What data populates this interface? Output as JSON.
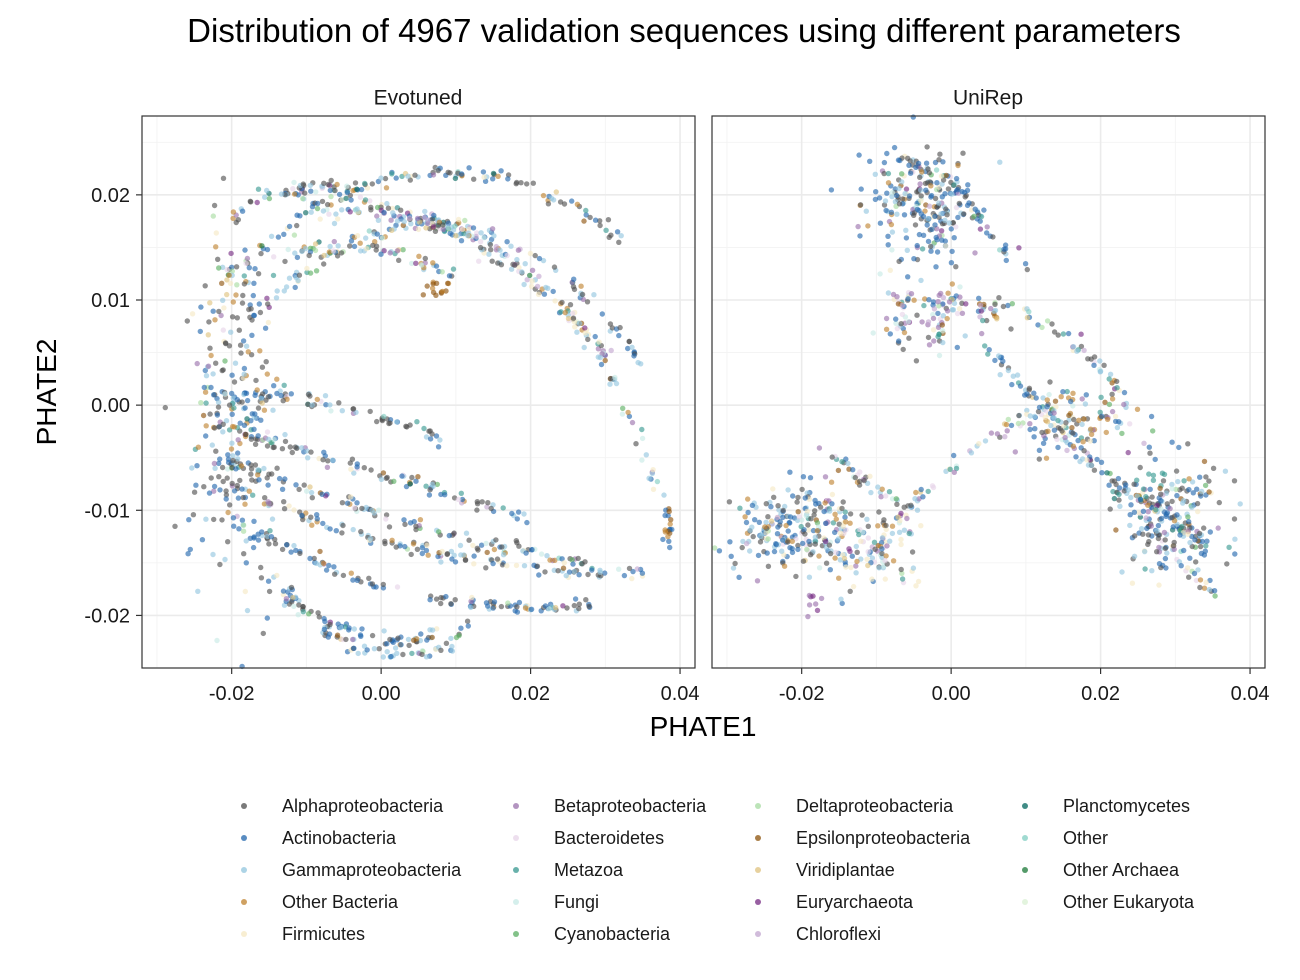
{
  "chart_data": {
    "type": "scatter",
    "title": "Distribution of 4967 validation sequences using different parameters",
    "xlabel": "PHATE1",
    "ylabel": "PHATE2",
    "facets": [
      "Evotuned",
      "UniRep"
    ],
    "xlim": [
      -0.032,
      0.042
    ],
    "ylim": [
      -0.025,
      0.0275
    ],
    "x_ticks": [
      -0.02,
      0.0,
      0.02,
      0.04
    ],
    "x_tick_labels": [
      "-0.02",
      "0.00",
      "0.02",
      "0.04"
    ],
    "y_ticks": [
      -0.02,
      -0.01,
      0.0,
      0.01,
      0.02
    ],
    "y_tick_labels": [
      "-0.02",
      "-0.01",
      "0.00",
      "0.01",
      "0.02"
    ],
    "grid": true,
    "legend_position": "bottom",
    "series": [
      {
        "name": "Alphaproteobacteria",
        "color": "#4d4d4d"
      },
      {
        "name": "Actinobacteria",
        "color": "#2166ac"
      },
      {
        "name": "Gammaproteobacteria",
        "color": "#92c5de"
      },
      {
        "name": "Other Bacteria",
        "color": "#bf812d"
      },
      {
        "name": "Firmicutes",
        "color": "#f6e8c3"
      },
      {
        "name": "Betaproteobacteria",
        "color": "#9970ab"
      },
      {
        "name": "Bacteroidetes",
        "color": "#e7d4e8"
      },
      {
        "name": "Metazoa",
        "color": "#35978f"
      },
      {
        "name": "Fungi",
        "color": "#c7eae5"
      },
      {
        "name": "Cyanobacteria",
        "color": "#5aae61"
      },
      {
        "name": "Deltaproteobacteria",
        "color": "#a6dba0"
      },
      {
        "name": "Epsilonproteobacteria",
        "color": "#8c510a"
      },
      {
        "name": "Viridiplantae",
        "color": "#dfc27d"
      },
      {
        "name": "Euryarchaeota",
        "color": "#762a83"
      },
      {
        "name": "Chloroflexi",
        "color": "#c2a5cf"
      },
      {
        "name": "Planctomycetes",
        "color": "#01665e"
      },
      {
        "name": "Other",
        "color": "#80cdc1"
      },
      {
        "name": "Other Archaea",
        "color": "#1b7837"
      },
      {
        "name": "Other Eukaryota",
        "color": "#d9f0d3"
      }
    ],
    "structure": {
      "Evotuned": {
        "arcs": [
          {
            "x0": -0.021,
            "y0": 0.012,
            "x1": 0.032,
            "y1": 0.016,
            "bulge": 0.008,
            "weights": [
              0.3,
              0.25,
              0.15,
              0.07,
              0.06,
              0.04,
              0.02,
              0.04,
              0.02,
              0.01,
              0.02,
              0.02,
              0.02,
              0.01,
              0.01,
              0.02,
              0.02,
              0.01,
              0.01
            ]
          },
          {
            "x0": -0.018,
            "y0": 0.008,
            "x1": 0.035,
            "y1": 0.004,
            "bulge": 0.011,
            "weights": [
              0.2,
              0.2,
              0.25,
              0.06,
              0.05,
              0.06,
              0.02,
              0.05,
              0.02,
              0.01,
              0.01,
              0.01,
              0.02,
              0.02,
              0.01,
              0.01,
              0.02,
              0.01,
              0.01
            ]
          },
          {
            "x0": -0.012,
            "y0": 0.02,
            "x1": 0.03,
            "y1": 0.005,
            "bulge": 0.004,
            "weights": [
              0.2,
              0.2,
              0.15,
              0.05,
              0.08,
              0.08,
              0.03,
              0.05,
              0.04,
              0.01,
              0.01,
              0.01,
              0.02,
              0.03,
              0.03,
              0.01,
              0.02,
              0.01,
              0.01
            ]
          },
          {
            "x0": -0.009,
            "y0": 0.018,
            "x1": 0.038,
            "y1": -0.01,
            "bulge": 0.01,
            "weights": [
              0.15,
              0.15,
              0.3,
              0.05,
              0.06,
              0.08,
              0.04,
              0.03,
              0.04,
              0.01,
              0.01,
              0.01,
              0.02,
              0.02,
              0.03,
              0.01,
              0.01,
              0.01,
              0.01
            ]
          },
          {
            "x0": -0.022,
            "y0": 0.001,
            "x1": 0.008,
            "y1": -0.003,
            "bulge": 0.001,
            "weights": [
              0.3,
              0.3,
              0.15,
              0.06,
              0.03,
              0.03,
              0.02,
              0.03,
              0.01,
              0.01,
              0.01,
              0.01,
              0.01,
              0.01,
              0.01,
              0.01,
              0.01,
              0.0,
              0.0
            ]
          },
          {
            "x0": -0.022,
            "y0": -0.002,
            "x1": 0.02,
            "y1": -0.011,
            "bulge": 0.0,
            "weights": [
              0.35,
              0.2,
              0.15,
              0.07,
              0.04,
              0.04,
              0.02,
              0.04,
              0.01,
              0.01,
              0.01,
              0.01,
              0.01,
              0.01,
              0.01,
              0.01,
              0.01,
              0.0,
              0.0
            ]
          },
          {
            "x0": -0.021,
            "y0": -0.005,
            "x1": 0.027,
            "y1": -0.015,
            "bulge": -0.001,
            "weights": [
              0.35,
              0.2,
              0.15,
              0.06,
              0.06,
              0.04,
              0.02,
              0.02,
              0.02,
              0.01,
              0.01,
              0.01,
              0.01,
              0.01,
              0.01,
              0.01,
              0.01,
              0.0,
              0.0
            ]
          },
          {
            "x0": -0.02,
            "y0": -0.008,
            "x1": 0.035,
            "y1": -0.016,
            "bulge": -0.002,
            "weights": [
              0.3,
              0.25,
              0.15,
              0.05,
              0.08,
              0.04,
              0.02,
              0.02,
              0.02,
              0.01,
              0.01,
              0.01,
              0.01,
              0.01,
              0.01,
              0.01,
              0.01,
              0.0,
              0.0
            ]
          },
          {
            "x0": -0.019,
            "y0": -0.011,
            "x1": 0.028,
            "y1": -0.019,
            "bulge": -0.003,
            "weights": [
              0.3,
              0.35,
              0.15,
              0.04,
              0.03,
              0.03,
              0.02,
              0.02,
              0.01,
              0.01,
              0.01,
              0.01,
              0.01,
              0.01,
              0.01,
              0.0,
              0.0,
              0.0,
              0.0
            ]
          },
          {
            "x0": -0.018,
            "y0": -0.014,
            "x1": 0.012,
            "y1": -0.021,
            "bulge": -0.004,
            "weights": [
              0.3,
              0.3,
              0.2,
              0.04,
              0.04,
              0.03,
              0.02,
              0.01,
              0.01,
              0.01,
              0.01,
              0.01,
              0.01,
              0.01,
              0.01,
              0.0,
              0.0,
              0.0,
              0.0
            ]
          },
          {
            "x0": -0.015,
            "y0": -0.017,
            "x1": 0.01,
            "y1": -0.023,
            "bulge": -0.003,
            "weights": [
              0.2,
              0.2,
              0.35,
              0.03,
              0.03,
              0.03,
              0.03,
              0.02,
              0.02,
              0.01,
              0.01,
              0.01,
              0.02,
              0.01,
              0.02,
              0.0,
              0.01,
              0.0,
              0.0
            ]
          },
          {
            "x0": -0.014,
            "y0": 0.014,
            "x1": 0.01,
            "y1": 0.012,
            "bulge": 0.002,
            "weights": [
              0.2,
              0.15,
              0.15,
              0.15,
              0.05,
              0.05,
              0.02,
              0.08,
              0.03,
              0.02,
              0.02,
              0.03,
              0.02,
              0.01,
              0.01,
              0.01,
              0.02,
              0.0,
              0.0
            ]
          },
          {
            "x0": -0.02,
            "y0": 0.018,
            "x1": -0.005,
            "y1": 0.021,
            "bulge": 0.001,
            "weights": [
              0.25,
              0.15,
              0.15,
              0.1,
              0.05,
              0.05,
              0.03,
              0.06,
              0.03,
              0.02,
              0.02,
              0.03,
              0.02,
              0.02,
              0.01,
              0.01,
              0.02,
              0.0,
              0.0
            ]
          }
        ],
        "blobs": [
          {
            "cx": -0.02,
            "cy": 0.0,
            "sx": 0.003,
            "sy": 0.009,
            "n": 260,
            "weights": [
              0.3,
              0.25,
              0.15,
              0.1,
              0.03,
              0.03,
              0.03,
              0.03,
              0.01,
              0.01,
              0.01,
              0.01,
              0.01,
              0.01,
              0.01,
              0.01,
              0.0,
              0.0,
              0.0
            ]
          },
          {
            "cx": 0.0385,
            "cy": -0.0115,
            "sx": 0.0004,
            "sy": 0.0012,
            "n": 18,
            "weights": [
              0.0,
              0.5,
              0.0,
              0.3,
              0.0,
              0.0,
              0.0,
              0.0,
              0.0,
              0.0,
              0.0,
              0.2,
              0.0,
              0.0,
              0.0,
              0.0,
              0.0,
              0.0,
              0.0
            ]
          },
          {
            "cx": 0.007,
            "cy": 0.011,
            "sx": 0.0015,
            "sy": 0.0005,
            "n": 14,
            "weights": [
              0.0,
              0.0,
              0.0,
              0.5,
              0.0,
              0.0,
              0.0,
              0.0,
              0.0,
              0.0,
              0.0,
              0.5,
              0.0,
              0.0,
              0.0,
              0.0,
              0.0,
              0.0,
              0.0
            ]
          }
        ]
      },
      "UniRep": {
        "arcs": [
          {
            "x0": -0.007,
            "y0": 0.024,
            "x1": 0.009,
            "y1": 0.013,
            "bulge": 0.001,
            "weights": [
              0.35,
              0.3,
              0.1,
              0.04,
              0.03,
              0.04,
              0.02,
              0.03,
              0.02,
              0.01,
              0.01,
              0.01,
              0.01,
              0.01,
              0.01,
              0.01,
              0.01,
              0.0,
              0.0
            ]
          },
          {
            "x0": 0.006,
            "y0": 0.01,
            "x1": 0.022,
            "y1": 0.002,
            "bulge": 0.001,
            "weights": [
              0.3,
              0.1,
              0.2,
              0.05,
              0.05,
              0.05,
              0.03,
              0.05,
              0.03,
              0.02,
              0.02,
              0.02,
              0.02,
              0.02,
              0.02,
              0.01,
              0.01,
              0.0,
              0.0
            ]
          },
          {
            "x0": 0.004,
            "y0": 0.006,
            "x1": 0.035,
            "y1": -0.018,
            "bulge": 0.0,
            "weights": [
              0.15,
              0.2,
              0.25,
              0.05,
              0.05,
              0.05,
              0.03,
              0.06,
              0.04,
              0.02,
              0.02,
              0.02,
              0.02,
              0.01,
              0.01,
              0.01,
              0.01,
              0.0,
              0.0
            ]
          },
          {
            "x0": 0.01,
            "y0": -0.002,
            "x1": 0.034,
            "y1": -0.014,
            "bulge": 0.001,
            "weights": [
              0.3,
              0.3,
              0.1,
              0.05,
              0.03,
              0.04,
              0.02,
              0.05,
              0.02,
              0.02,
              0.01,
              0.02,
              0.01,
              0.01,
              0.01,
              0.01,
              0.0,
              0.0,
              0.0
            ]
          },
          {
            "x0": -0.011,
            "y0": -0.015,
            "x1": 0.014,
            "y1": 0.0,
            "bulge": 0.002,
            "weights": [
              0.15,
              0.1,
              0.2,
              0.06,
              0.1,
              0.06,
              0.08,
              0.04,
              0.05,
              0.02,
              0.02,
              0.04,
              0.03,
              0.01,
              0.02,
              0.0,
              0.02,
              0.0,
              0.0
            ]
          },
          {
            "x0": -0.018,
            "y0": -0.004,
            "x1": -0.005,
            "y1": -0.01,
            "bulge": 0.0,
            "weights": [
              0.2,
              0.1,
              0.15,
              0.1,
              0.05,
              0.1,
              0.08,
              0.05,
              0.03,
              0.02,
              0.01,
              0.05,
              0.02,
              0.02,
              0.02,
              0.0,
              0.0,
              0.0,
              0.0
            ]
          },
          {
            "x0": -0.008,
            "y0": 0.01,
            "x1": 0.008,
            "y1": 0.008,
            "bulge": 0.001,
            "weights": [
              0.15,
              0.15,
              0.15,
              0.1,
              0.05,
              0.12,
              0.04,
              0.06,
              0.03,
              0.02,
              0.02,
              0.03,
              0.03,
              0.02,
              0.02,
              0.0,
              0.01,
              0.0,
              0.0
            ]
          }
        ],
        "blobs": [
          {
            "cx": -0.004,
            "cy": 0.019,
            "sx": 0.0035,
            "sy": 0.003,
            "n": 240,
            "weights": [
              0.25,
              0.35,
              0.15,
              0.04,
              0.04,
              0.04,
              0.02,
              0.03,
              0.02,
              0.01,
              0.01,
              0.01,
              0.01,
              0.01,
              0.01,
              0.0,
              0.0,
              0.0,
              0.0
            ]
          },
          {
            "cx": -0.02,
            "cy": -0.012,
            "sx": 0.0045,
            "sy": 0.0022,
            "n": 260,
            "weights": [
              0.2,
              0.3,
              0.15,
              0.08,
              0.06,
              0.04,
              0.04,
              0.03,
              0.03,
              0.01,
              0.02,
              0.01,
              0.01,
              0.01,
              0.01,
              0.0,
              0.0,
              0.0,
              0.0
            ]
          },
          {
            "cx": 0.029,
            "cy": -0.01,
            "sx": 0.0035,
            "sy": 0.003,
            "n": 200,
            "weights": [
              0.25,
              0.25,
              0.2,
              0.05,
              0.04,
              0.04,
              0.02,
              0.06,
              0.02,
              0.02,
              0.01,
              0.02,
              0.01,
              0.01,
              0.01,
              0.0,
              0.0,
              0.0,
              0.0
            ]
          },
          {
            "cx": 0.018,
            "cy": -0.001,
            "sx": 0.004,
            "sy": 0.0015,
            "n": 90,
            "weights": [
              0.15,
              0.15,
              0.15,
              0.2,
              0.05,
              0.05,
              0.02,
              0.06,
              0.02,
              0.02,
              0.01,
              0.08,
              0.02,
              0.01,
              0.01,
              0.0,
              0.0,
              0.0,
              0.0
            ]
          },
          {
            "cx": -0.01,
            "cy": -0.014,
            "sx": 0.003,
            "sy": 0.0018,
            "n": 70,
            "weights": [
              0.1,
              0.1,
              0.2,
              0.05,
              0.15,
              0.05,
              0.15,
              0.04,
              0.05,
              0.01,
              0.01,
              0.01,
              0.04,
              0.01,
              0.03,
              0.0,
              0.0,
              0.0,
              0.0
            ]
          },
          {
            "cx": -0.003,
            "cy": 0.008,
            "sx": 0.004,
            "sy": 0.0015,
            "n": 80,
            "weights": [
              0.15,
              0.1,
              0.15,
              0.05,
              0.05,
              0.2,
              0.03,
              0.05,
              0.05,
              0.01,
              0.02,
              0.02,
              0.02,
              0.05,
              0.05,
              0.0,
              0.0,
              0.0,
              0.0
            ]
          },
          {
            "cx": -0.0185,
            "cy": -0.0185,
            "sx": 0.0008,
            "sy": 0.0008,
            "n": 8,
            "weights": [
              0.0,
              0.0,
              0.0,
              0.0,
              0.0,
              0.5,
              0.0,
              0.0,
              0.0,
              0.0,
              0.0,
              0.0,
              0.0,
              0.5,
              0.0,
              0.0,
              0.0,
              0.0,
              0.0
            ]
          }
        ]
      }
    }
  }
}
